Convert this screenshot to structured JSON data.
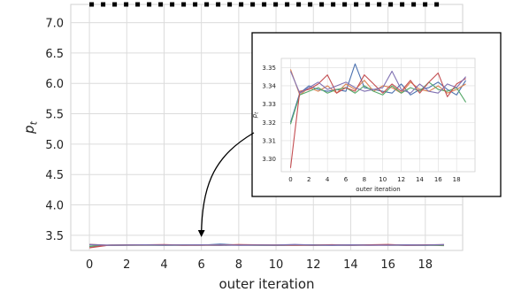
{
  "chart_data": [
    {
      "type": "line",
      "xlabel": "outer iteration",
      "ylabel": "p_t",
      "xlim": [
        -1,
        20
      ],
      "ylim": [
        3.25,
        7.3
      ],
      "xticks": [
        0,
        2,
        4,
        6,
        8,
        10,
        12,
        14,
        16,
        18
      ],
      "yticks": [
        3.5,
        4.0,
        4.5,
        5.0,
        5.5,
        6.0,
        6.5,
        7.0
      ],
      "grid": true,
      "x": [
        0,
        1,
        2,
        3,
        4,
        5,
        6,
        7,
        8,
        9,
        10,
        11,
        12,
        13,
        14,
        15,
        16,
        17,
        18,
        19
      ],
      "reference_line": {
        "value": 7.3,
        "style": "dotted",
        "color": "#000000"
      },
      "series": [
        {
          "color": "#4c72b0",
          "values": [
            3.32,
            3.336,
            3.34,
            3.338,
            3.337,
            3.338,
            3.337,
            3.352,
            3.339,
            3.338,
            3.337,
            3.336,
            3.341,
            3.335,
            3.338,
            3.339,
            3.342,
            3.338,
            3.335,
            3.343
          ]
        },
        {
          "color": "#dd8452",
          "values": [
            3.349,
            3.335,
            3.339,
            3.337,
            3.34,
            3.336,
            3.341,
            3.338,
            3.343,
            3.337,
            3.34,
            3.339,
            3.336,
            3.342,
            3.338,
            3.337,
            3.34,
            3.336,
            3.338,
            3.341
          ]
        },
        {
          "color": "#55a868",
          "values": [
            3.319,
            3.335,
            3.337,
            3.339,
            3.336,
            3.338,
            3.339,
            3.336,
            3.34,
            3.337,
            3.335,
            3.34,
            3.336,
            3.339,
            3.337,
            3.342,
            3.338,
            3.337,
            3.339,
            3.331
          ]
        },
        {
          "color": "#c44e52",
          "values": [
            3.295,
            3.337,
            3.338,
            3.341,
            3.346,
            3.336,
            3.339,
            3.337,
            3.346,
            3.341,
            3.336,
            3.341,
            3.337,
            3.343,
            3.336,
            3.342,
            3.347,
            3.334,
            3.341,
            3.344
          ]
        },
        {
          "color": "#8172b3",
          "values": [
            3.348,
            3.336,
            3.339,
            3.342,
            3.338,
            3.34,
            3.342,
            3.339,
            3.337,
            3.338,
            3.339,
            3.348,
            3.338,
            3.336,
            3.341,
            3.337,
            3.336,
            3.341,
            3.339,
            3.345
          ]
        }
      ]
    },
    {
      "type": "line",
      "role": "inset",
      "xlabel": "outer iteration",
      "ylabel": "p_t",
      "xlim": [
        -1,
        20
      ],
      "ylim": [
        3.293,
        3.355
      ],
      "xticks": [
        0,
        2,
        4,
        6,
        8,
        10,
        12,
        14,
        16,
        18
      ],
      "yticks": [
        3.3,
        3.31,
        3.32,
        3.33,
        3.34,
        3.35
      ],
      "ytick_labels": [
        "3.30",
        "3.31",
        "3.32",
        "3.33",
        "3.34",
        "3.35"
      ],
      "grid": true,
      "x": [
        0,
        1,
        2,
        3,
        4,
        5,
        6,
        7,
        8,
        9,
        10,
        11,
        12,
        13,
        14,
        15,
        16,
        17,
        18,
        19
      ],
      "series": [
        {
          "color": "#4c72b0",
          "values": [
            3.32,
            3.336,
            3.34,
            3.338,
            3.337,
            3.338,
            3.337,
            3.352,
            3.339,
            3.338,
            3.337,
            3.336,
            3.341,
            3.335,
            3.338,
            3.339,
            3.342,
            3.338,
            3.335,
            3.343
          ]
        },
        {
          "color": "#dd8452",
          "values": [
            3.349,
            3.335,
            3.339,
            3.337,
            3.34,
            3.336,
            3.341,
            3.338,
            3.343,
            3.337,
            3.34,
            3.339,
            3.336,
            3.342,
            3.338,
            3.337,
            3.34,
            3.336,
            3.338,
            3.341
          ]
        },
        {
          "color": "#55a868",
          "values": [
            3.319,
            3.335,
            3.337,
            3.339,
            3.336,
            3.338,
            3.339,
            3.336,
            3.34,
            3.337,
            3.335,
            3.34,
            3.336,
            3.339,
            3.337,
            3.342,
            3.338,
            3.337,
            3.339,
            3.331
          ]
        },
        {
          "color": "#c44e52",
          "values": [
            3.295,
            3.337,
            3.338,
            3.341,
            3.346,
            3.336,
            3.339,
            3.337,
            3.346,
            3.341,
            3.336,
            3.341,
            3.337,
            3.343,
            3.336,
            3.342,
            3.347,
            3.334,
            3.341,
            3.344
          ]
        },
        {
          "color": "#8172b3",
          "values": [
            3.348,
            3.336,
            3.339,
            3.342,
            3.338,
            3.34,
            3.342,
            3.339,
            3.337,
            3.338,
            3.339,
            3.348,
            3.338,
            3.336,
            3.341,
            3.337,
            3.336,
            3.341,
            3.339,
            3.345
          ]
        }
      ]
    }
  ]
}
